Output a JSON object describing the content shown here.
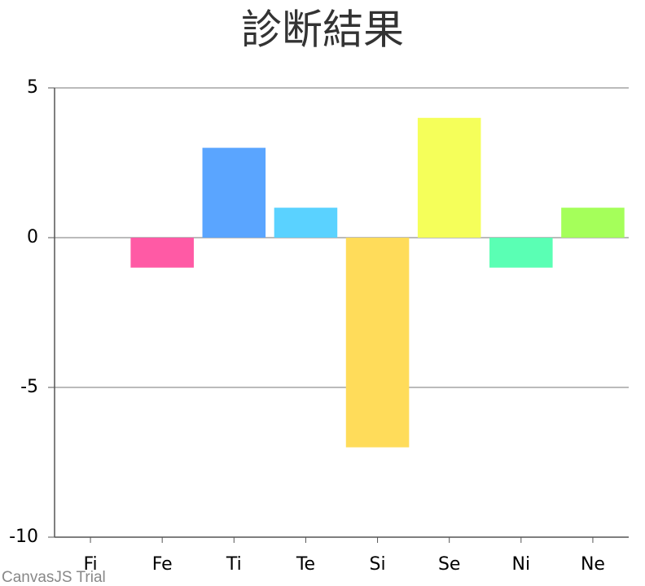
{
  "chart_data": {
    "type": "bar",
    "title": "診断結果",
    "categories": [
      "Fi",
      "Fe",
      "Ti",
      "Te",
      "Si",
      "Se",
      "Ni",
      "Ne"
    ],
    "values": [
      0,
      -1,
      3,
      1,
      -7,
      4,
      -1,
      1
    ],
    "colors": [
      "#ff5a5a",
      "#ff5aa5",
      "#5aa5ff",
      "#5ad2ff",
      "#ffdc5a",
      "#f5ff5a",
      "#5affb4",
      "#a5ff5a"
    ],
    "ylim": [
      -10,
      5
    ],
    "yticks": [
      -10,
      -5,
      0,
      5
    ],
    "grid": true,
    "credit": "CanvasJS Trial"
  }
}
